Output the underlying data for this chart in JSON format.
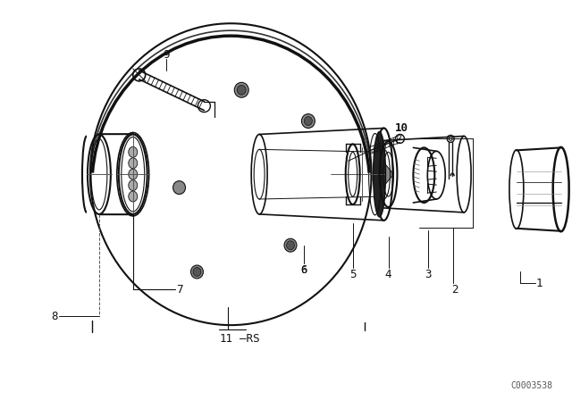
{
  "bg": "#ffffff",
  "lc": "#111111",
  "watermark": "C0003538",
  "fig_w": 6.4,
  "fig_h": 4.48,
  "dpi": 100
}
